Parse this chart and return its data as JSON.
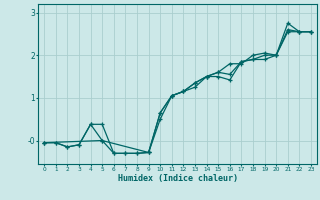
{
  "xlabel": "Humidex (Indice chaleur)",
  "background_color": "#cce8e8",
  "line_color": "#006666",
  "grid_color": "#aacece",
  "xlim": [
    -0.5,
    23.5
  ],
  "ylim": [
    -0.55,
    3.2
  ],
  "yticks": [
    0,
    1,
    2,
    3
  ],
  "ytick_labels": [
    "-0",
    "1",
    "2",
    "3"
  ],
  "line1_x": [
    0,
    1,
    2,
    3,
    4,
    5,
    6,
    7,
    8,
    9,
    10,
    11,
    12,
    13,
    14,
    15,
    16,
    17,
    18,
    19,
    20,
    21,
    22,
    23
  ],
  "line1_y": [
    -0.05,
    -0.05,
    -0.15,
    -0.1,
    0.38,
    0.0,
    -0.3,
    -0.3,
    -0.3,
    -0.28,
    0.5,
    1.05,
    1.15,
    1.25,
    1.5,
    1.5,
    1.42,
    1.85,
    1.9,
    1.9,
    2.0,
    2.75,
    2.55,
    2.55
  ],
  "line2_x": [
    0,
    1,
    2,
    3,
    4,
    5,
    6,
    7,
    8,
    9,
    10,
    11,
    12,
    13,
    14,
    15,
    16,
    17,
    18,
    19,
    20,
    21,
    22,
    23
  ],
  "line2_y": [
    -0.05,
    -0.05,
    -0.15,
    -0.1,
    0.38,
    0.38,
    -0.3,
    -0.3,
    -0.3,
    -0.28,
    0.65,
    1.05,
    1.15,
    1.35,
    1.5,
    1.6,
    1.55,
    1.85,
    1.9,
    2.0,
    2.0,
    2.55,
    2.55,
    2.55
  ],
  "line3_x": [
    0,
    5,
    9,
    10,
    11,
    12,
    13,
    14,
    15,
    16,
    17,
    18,
    19,
    20,
    21,
    22,
    23
  ],
  "line3_y": [
    -0.05,
    0.0,
    -0.28,
    0.65,
    1.05,
    1.15,
    1.35,
    1.5,
    1.6,
    1.8,
    1.8,
    2.0,
    2.05,
    2.0,
    2.6,
    2.55,
    2.55
  ]
}
